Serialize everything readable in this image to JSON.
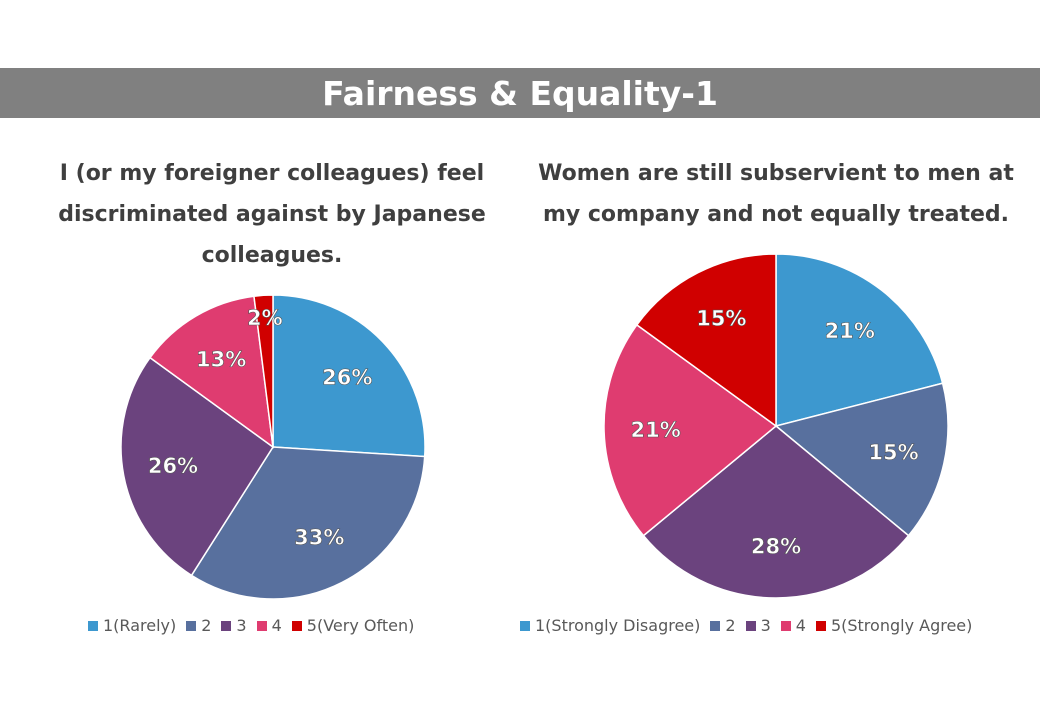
{
  "banner": {
    "title": "Fairness & Equality-1"
  },
  "chart_data": [
    {
      "type": "pie",
      "title": "I (or my foreigner colleagues) feel discriminated against by Japanese colleagues.",
      "categories": [
        "1(Rarely)",
        "2",
        "3",
        "4",
        "5(Very Often)"
      ],
      "values": [
        26,
        33,
        26,
        13,
        2
      ],
      "labels": [
        "26%",
        "33%",
        "26%",
        "13%",
        "2%"
      ],
      "colors": [
        "#3d98cf",
        "#58709e",
        "#6b437e",
        "#df3c70",
        "#d00000"
      ],
      "legend_position": "bottom",
      "start_angle_deg": -90
    },
    {
      "type": "pie",
      "title": "Women are still subservient to men at my company and not equally treated.",
      "categories": [
        "1(Strongly Disagree)",
        "2",
        "3",
        "4",
        "5(Strongly Agree)"
      ],
      "values": [
        21,
        15,
        28,
        21,
        15
      ],
      "labels": [
        "21%",
        "15%",
        "28%",
        "21%",
        "15%"
      ],
      "colors": [
        "#3d98cf",
        "#58709e",
        "#6b437e",
        "#df3c70",
        "#d00000"
      ],
      "legend_position": "bottom",
      "start_angle_deg": -90
    }
  ]
}
